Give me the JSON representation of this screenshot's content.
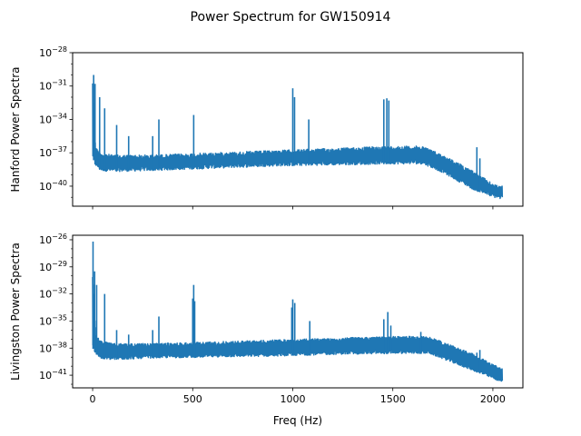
{
  "figure": {
    "title": "Power Spectrum for GW150914",
    "xlabel": "Freq (Hz)",
    "series_color": "#1f77b4",
    "background": "#ffffff"
  },
  "chart_data": [
    {
      "type": "line",
      "name": "hanford",
      "ylabel": "Hanford Power Spectra",
      "yscale": "log",
      "xlim": [
        -100,
        2150
      ],
      "ylim_exp": [
        -41.8,
        -28
      ],
      "x_ticks": [
        0,
        500,
        1000,
        1500,
        2000
      ],
      "x_ticklabels_shown": false,
      "y_tick_exps": [
        -40,
        -37,
        -34,
        -31,
        -28
      ],
      "y_ticklabels": [
        "10",
        "10",
        "10",
        "10",
        "10"
      ],
      "y_tick_superscripts": [
        "−40",
        "−37",
        "−34",
        "−31",
        "−28"
      ],
      "grid": false,
      "envelope": [
        {
          "x": 0,
          "min_exp": -37.4,
          "max_exp": -30.5
        },
        {
          "x": 15,
          "min_exp": -38.2,
          "max_exp": -36.5
        },
        {
          "x": 40,
          "min_exp": -38.6,
          "max_exp": -37.0
        },
        {
          "x": 100,
          "min_exp": -38.7,
          "max_exp": -37.2
        },
        {
          "x": 300,
          "min_exp": -38.6,
          "max_exp": -37.2
        },
        {
          "x": 600,
          "min_exp": -38.4,
          "max_exp": -37.0
        },
        {
          "x": 900,
          "min_exp": -38.2,
          "max_exp": -36.8
        },
        {
          "x": 1200,
          "min_exp": -38.1,
          "max_exp": -36.6
        },
        {
          "x": 1500,
          "min_exp": -38.0,
          "max_exp": -36.4
        },
        {
          "x": 1650,
          "min_exp": -38.0,
          "max_exp": -36.4
        },
        {
          "x": 1750,
          "min_exp": -38.8,
          "max_exp": -37.2
        },
        {
          "x": 1900,
          "min_exp": -40.3,
          "max_exp": -38.6
        },
        {
          "x": 2000,
          "min_exp": -41.0,
          "max_exp": -39.8
        },
        {
          "x": 2048,
          "min_exp": -41.2,
          "max_exp": -40.0
        }
      ],
      "peaks": [
        {
          "x": 5,
          "exp": -30.0
        },
        {
          "x": 12,
          "exp": -30.8
        },
        {
          "x": 35,
          "exp": -32.0
        },
        {
          "x": 60,
          "exp": -33.0
        },
        {
          "x": 120,
          "exp": -34.5
        },
        {
          "x": 180,
          "exp": -35.5
        },
        {
          "x": 300,
          "exp": -35.5
        },
        {
          "x": 331,
          "exp": -34.0
        },
        {
          "x": 505,
          "exp": -33.6
        },
        {
          "x": 1000,
          "exp": -31.2
        },
        {
          "x": 1009,
          "exp": -32.0
        },
        {
          "x": 1080,
          "exp": -34.0
        },
        {
          "x": 1455,
          "exp": -32.2
        },
        {
          "x": 1470,
          "exp": -32.1
        },
        {
          "x": 1480,
          "exp": -32.3
        },
        {
          "x": 1920,
          "exp": -36.5
        },
        {
          "x": 1935,
          "exp": -37.5
        }
      ]
    },
    {
      "type": "line",
      "name": "livingston",
      "ylabel": "Livingston Power Spectra",
      "yscale": "log",
      "xlim": [
        -100,
        2150
      ],
      "ylim_exp": [
        -42.4,
        -25.5
      ],
      "x_ticks": [
        0,
        500,
        1000,
        1500,
        2000
      ],
      "x_ticklabels": [
        "0",
        "500",
        "1000",
        "1500",
        "2000"
      ],
      "y_tick_exps": [
        -41,
        -38,
        -35,
        -32,
        -29,
        -26
      ],
      "y_ticklabels": [
        "10",
        "10",
        "10",
        "10",
        "10",
        "10"
      ],
      "y_tick_superscripts": [
        "−41",
        "−38",
        "−35",
        "−32",
        "−29",
        "−26"
      ],
      "grid": false,
      "envelope": [
        {
          "x": 0,
          "min_exp": -38.0,
          "max_exp": -30.0
        },
        {
          "x": 15,
          "min_exp": -38.6,
          "max_exp": -36.5
        },
        {
          "x": 40,
          "min_exp": -39.2,
          "max_exp": -37.2
        },
        {
          "x": 100,
          "min_exp": -39.3,
          "max_exp": -37.5
        },
        {
          "x": 300,
          "min_exp": -39.1,
          "max_exp": -37.5
        },
        {
          "x": 600,
          "min_exp": -39.0,
          "max_exp": -37.3
        },
        {
          "x": 900,
          "min_exp": -38.9,
          "max_exp": -37.1
        },
        {
          "x": 1200,
          "min_exp": -38.7,
          "max_exp": -36.9
        },
        {
          "x": 1500,
          "min_exp": -38.6,
          "max_exp": -36.7
        },
        {
          "x": 1680,
          "min_exp": -38.6,
          "max_exp": -36.7
        },
        {
          "x": 1760,
          "min_exp": -39.3,
          "max_exp": -37.4
        },
        {
          "x": 1900,
          "min_exp": -40.5,
          "max_exp": -38.6
        },
        {
          "x": 2000,
          "min_exp": -41.4,
          "max_exp": -39.8
        },
        {
          "x": 2048,
          "min_exp": -41.8,
          "max_exp": -40.3
        }
      ],
      "peaks": [
        {
          "x": 2,
          "exp": -26.2
        },
        {
          "x": 10,
          "exp": -29.5
        },
        {
          "x": 20,
          "exp": -31.0
        },
        {
          "x": 60,
          "exp": -32.0
        },
        {
          "x": 120,
          "exp": -36.0
        },
        {
          "x": 180,
          "exp": -36.5
        },
        {
          "x": 300,
          "exp": -36.0
        },
        {
          "x": 331,
          "exp": -34.5
        },
        {
          "x": 500,
          "exp": -32.5
        },
        {
          "x": 505,
          "exp": -31.0
        },
        {
          "x": 510,
          "exp": -32.8
        },
        {
          "x": 995,
          "exp": -33.5
        },
        {
          "x": 1000,
          "exp": -32.6
        },
        {
          "x": 1010,
          "exp": -33.0
        },
        {
          "x": 1085,
          "exp": -35.0
        },
        {
          "x": 1455,
          "exp": -34.8
        },
        {
          "x": 1475,
          "exp": -34.0
        },
        {
          "x": 1490,
          "exp": -35.5
        },
        {
          "x": 1640,
          "exp": -36.2
        },
        {
          "x": 1920,
          "exp": -38.5
        },
        {
          "x": 1935,
          "exp": -38.2
        }
      ]
    }
  ]
}
